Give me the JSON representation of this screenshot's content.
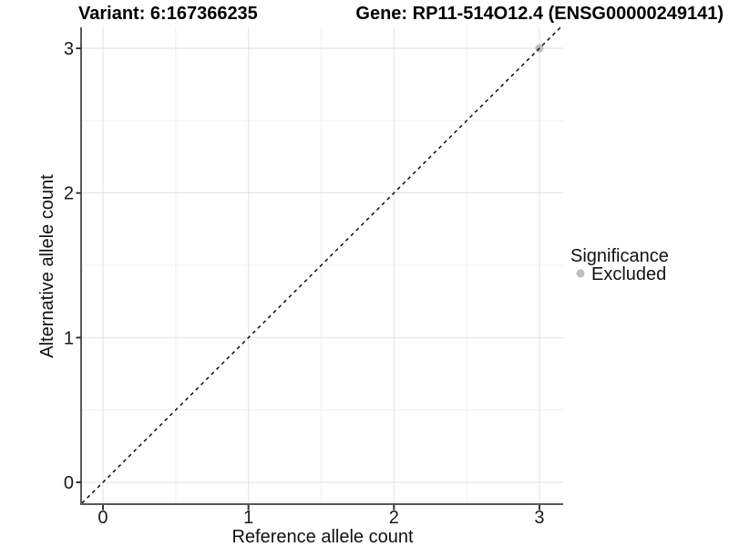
{
  "chart_data": {
    "type": "scatter",
    "title_left": "Variant: 6:167366235",
    "title_right": "Gene: RP11-514O12.4 (ENSG00000249141)",
    "xlabel": "Reference allele count",
    "ylabel": "Alternative allele count",
    "xlim": [
      -0.144,
      3.163
    ],
    "ylim": [
      -0.151,
      3.145
    ],
    "x_ticks": {
      "values": [
        0,
        1,
        2,
        3
      ],
      "labels": [
        "0",
        "1",
        "2",
        "3"
      ]
    },
    "y_ticks": {
      "values": [
        0,
        1,
        2,
        3
      ],
      "labels": [
        "0",
        "1",
        "2",
        "3"
      ]
    },
    "x_minor_ticks": [
      0.5,
      1.5,
      2.5
    ],
    "y_minor_ticks": [
      0.5,
      1.5,
      2.5
    ],
    "grid": "major+minor",
    "identity_line": {
      "type": "y=x",
      "style": "dashed",
      "color": "#000000"
    },
    "series": [
      {
        "name": "Excluded",
        "color": "#bdbdbd",
        "points": [
          {
            "x": 3,
            "y": 3
          }
        ]
      }
    ],
    "legend": {
      "title": "Significance",
      "position": "right",
      "entries": [
        {
          "label": "Excluded",
          "color": "#bdbdbd",
          "marker": "circle"
        }
      ]
    }
  },
  "colors": {
    "background": "#ffffff",
    "grid_major": "#e2e2e2",
    "grid_minor": "#f0f0f0",
    "axis_line": "#595959",
    "tick_mark": "#333333",
    "identity_line": "#000000",
    "excluded_point": "#bdbdbd"
  }
}
